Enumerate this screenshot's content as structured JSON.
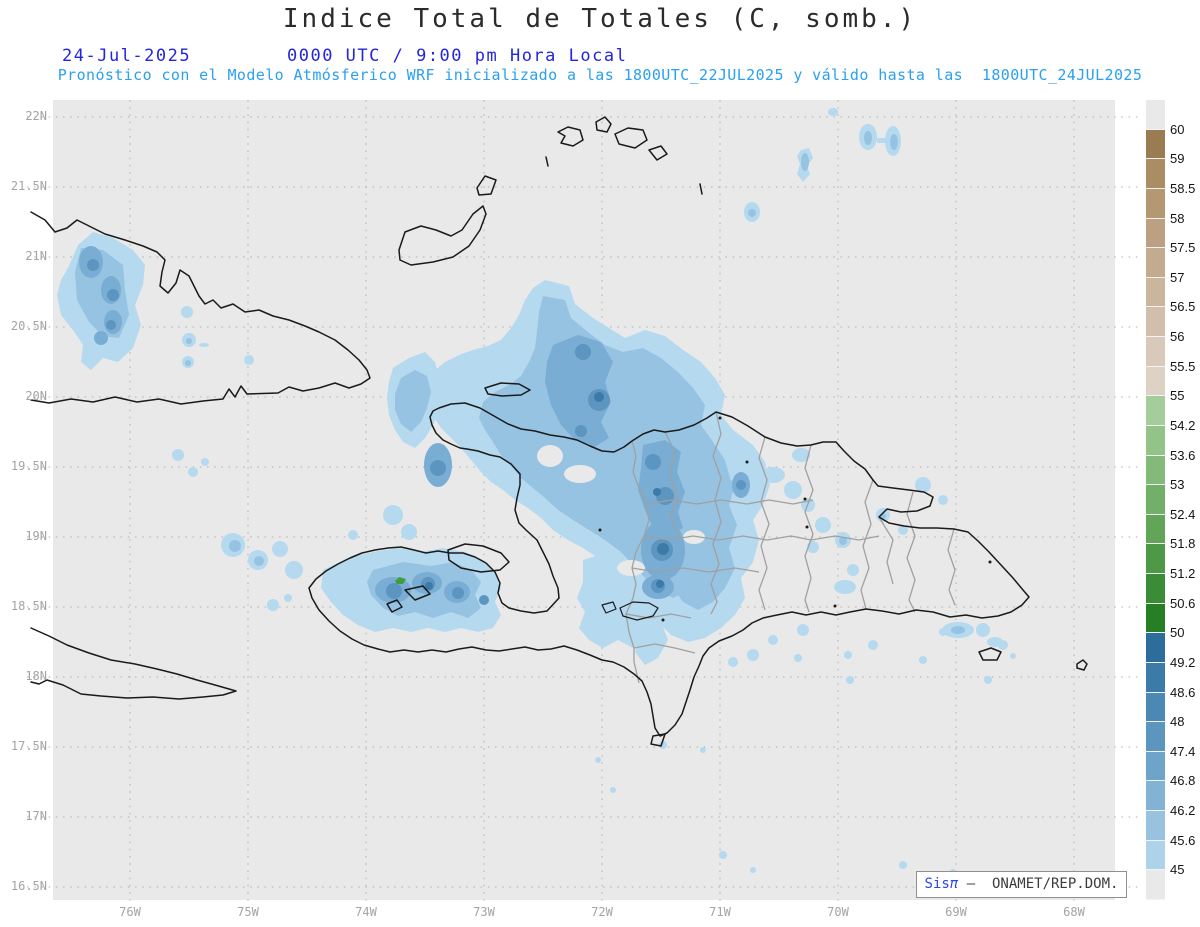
{
  "header": {
    "title": "Indice Total de Totales (C, somb.)",
    "date": "24-Jul-2025",
    "time_label": "0000 UTC / 9:00 pm Hora Local",
    "forecast_note": "Pronóstico con el Modelo Atmósferico WRF inicializado a las 1800UTC_22JUL2025 y válido hasta las  1800UTC_24JUL2025"
  },
  "axes": {
    "lat_ticks": [
      "22N",
      "21.5N",
      "21N",
      "20.5N",
      "20N",
      "19.5N",
      "19N",
      "18.5N",
      "18N",
      "17.5N",
      "17N",
      "16.5N"
    ],
    "lon_ticks": [
      "76W",
      "75W",
      "74W",
      "73W",
      "72W",
      "71W",
      "70W",
      "69W",
      "68W"
    ]
  },
  "colorbar": {
    "tick_labels": [
      "60",
      "59",
      "58.5",
      "58",
      "57.5",
      "57",
      "56.5",
      "56",
      "55.5",
      "55",
      "54.2",
      "53.6",
      "53",
      "52.4",
      "51.8",
      "51.2",
      "50.6",
      "50",
      "49.2",
      "48.6",
      "48",
      "47.4",
      "46.8",
      "46.2",
      "45.6",
      "45"
    ],
    "colors": [
      "#e9e9e9",
      "#9a7c53",
      "#aa8d63",
      "#b39872",
      "#bba181",
      "#c2ab8e",
      "#cab69d",
      "#d1bfac",
      "#d8c9ba",
      "#ded2c5",
      "#a4cd9b",
      "#94c38a",
      "#83b979",
      "#72af68",
      "#61a558",
      "#4e9947",
      "#3a8c36",
      "#267e25",
      "#2d6d9b",
      "#3c7aa8",
      "#4b88b3",
      "#5c96bf",
      "#6ea4c9",
      "#83b3d4",
      "#98c2df",
      "#aed2e9",
      "#e9e9e9"
    ]
  },
  "attribution": {
    "brand_sis": "Sis",
    "brand_pi": "π",
    "text": " –  ONAMET/REP.DOM."
  },
  "chart_data": {
    "type": "heatmap",
    "title": "Indice Total de Totales (C, somb.)",
    "variable": "Total Totals index (C, shaded)",
    "model": "WRF",
    "initialized": "1800UTC_22JUL2025",
    "valid_until": "1800UTC_24JUL2025",
    "valid_time": "24-Jul-2025 0000 UTC / 9:00 pm Hora Local",
    "region": {
      "lon_range": [
        "76.6W",
        "67.6W"
      ],
      "lat_range": [
        "16.5N",
        "22N"
      ]
    },
    "contour_levels": [
      45,
      45.6,
      46.2,
      46.8,
      47.4,
      48,
      48.6,
      49.2,
      50,
      50.6,
      51.2,
      51.8,
      52.4,
      53,
      53.6,
      54.2,
      55,
      55.5,
      56,
      56.5,
      57,
      57.5,
      58,
      58.5,
      59,
      60
    ],
    "shaded_features": [
      {
        "location": "eastern Cuba interior (~76.3W, 20.6-21.2N)",
        "values": "45-48"
      },
      {
        "location": "northern Haiti / central Hispaniola (~73.2-71.3W, 18.9-20.1N)",
        "values": "45-49.5, local maxima near 71.6W 19.2N"
      },
      {
        "location": "Tiburon peninsula, southern Haiti (~74.5-72.4W, 18.3-18.8N)",
        "values": "45-50.5, small >50 green spot near 73.6W 18.6N"
      },
      {
        "location": "south-central Dominican Republic (~71.6-70.7W, 18.2-19.2N)",
        "values": "45-49"
      },
      {
        "location": "scattered small cells over eastern DR, Atlantic waters north of Hispaniola and Caribbean south of the coast",
        "values": "45-47"
      }
    ],
    "grid": true,
    "legend_position": "right vertical colorbar"
  }
}
